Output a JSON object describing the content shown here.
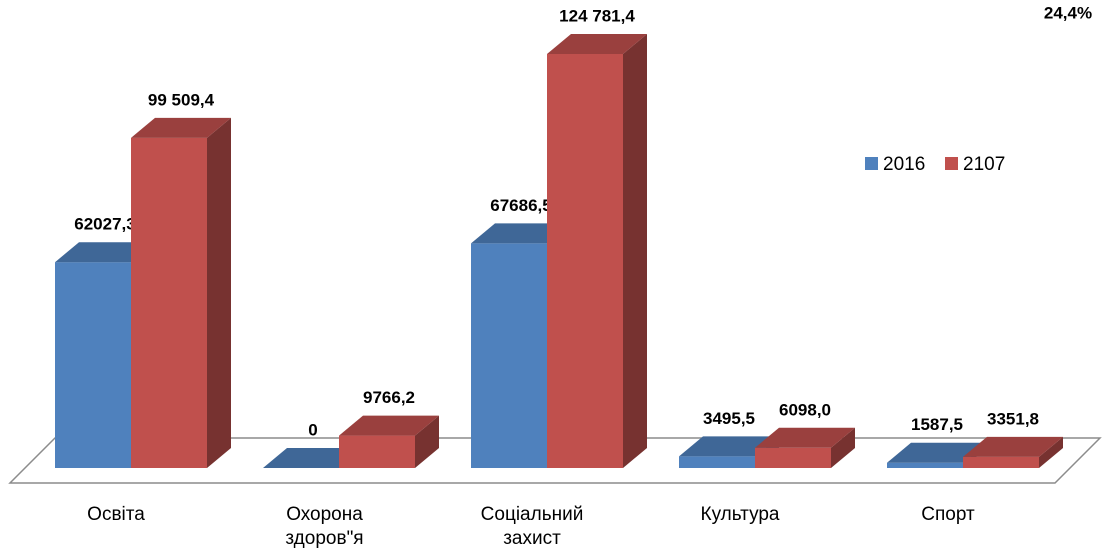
{
  "chart_data": {
    "type": "bar3d",
    "annotation": "24,4%",
    "categories": [
      "Освіта",
      "Охорона здоров\"я",
      "Соціальний захист",
      "Культура",
      "Спорт"
    ],
    "series": [
      {
        "name": "2016",
        "color": "#4f81bd",
        "values": [
          62027.3,
          0,
          67686.5,
          3495.5,
          1587.5
        ],
        "value_labels": [
          "62027,3",
          "0",
          "67686,5",
          "3495,5",
          "1587,5"
        ]
      },
      {
        "name": "2107",
        "color": "#c0504d",
        "values": [
          99509.4,
          9766.2,
          124781.4,
          6098.0,
          3351.8
        ],
        "value_labels": [
          "99 509,4",
          "9766,2",
          "124 781,4",
          "6098,0",
          "3351,8"
        ]
      }
    ],
    "legend": "right"
  }
}
